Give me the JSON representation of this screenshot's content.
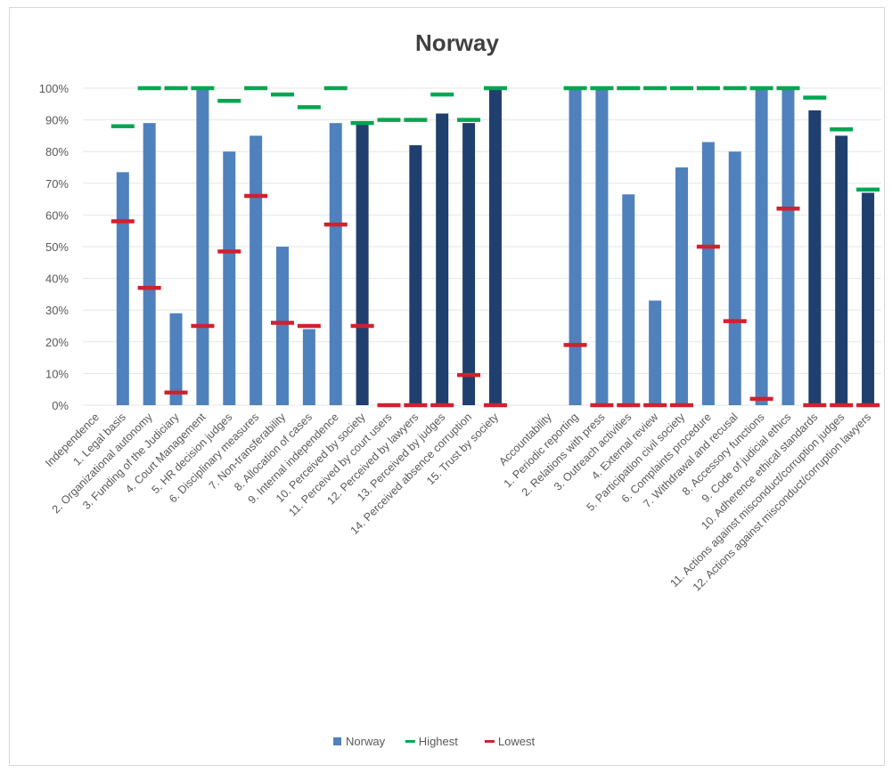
{
  "chart_data": {
    "type": "bar",
    "title": "Norway",
    "ylim": [
      0,
      100
    ],
    "yticks": [
      "0%",
      "10%",
      "20%",
      "30%",
      "40%",
      "50%",
      "60%",
      "70%",
      "80%",
      "90%",
      "100%"
    ],
    "grid": true,
    "legend_position": "bottom",
    "colors": {
      "light_bar": "#4f81bd",
      "dark_bar": "#1f3f6e",
      "highest": "#00a651",
      "lowest": "#d2202f",
      "grid": "#e6e6e6"
    },
    "categories": [
      "Independence",
      "1. Legal basis",
      "2. Organizational autonomy",
      "3. Funding of the Judiciary",
      "4. Court Management",
      "5. HR decision judges",
      "6. Disciplinary measures",
      "7. Non-transferability",
      "8. Allocation of cases",
      "9. Internal independence",
      "10. Perceived by society",
      "11. Perceived by court users",
      "12. Perceived by lawyers",
      "13. Perceived by judges",
      "14. Perceived absence corruption",
      "15. Trust by society",
      "",
      "Accountability",
      "1. Periodic reporting",
      "2. Relations with press",
      "3. Outreach activities",
      "4. External review",
      "5. Participation civil society",
      "6. Complaints procedure",
      "7. Withdrawal and recusal",
      "8. Accessory functions",
      "9. Code of judicial ethics",
      "10. Adherence ethical standards",
      "11. Actions against misconduct/corruption judges",
      "12. Actions against misconduct/corruption lawyers"
    ],
    "bar_shade": [
      "light",
      "light",
      "light",
      "light",
      "light",
      "light",
      "light",
      "light",
      "light",
      "light",
      "dark",
      "dark",
      "dark",
      "dark",
      "dark",
      "dark",
      "",
      "light",
      "light",
      "light",
      "light",
      "light",
      "light",
      "light",
      "light",
      "light",
      "light",
      "dark",
      "dark",
      "dark"
    ],
    "series": [
      {
        "name": "Norway",
        "values": [
          null,
          73.5,
          89,
          29,
          100,
          80,
          85,
          50,
          24,
          89,
          89,
          null,
          82,
          92,
          89,
          100,
          null,
          null,
          100,
          100,
          66.5,
          33,
          75,
          83,
          80,
          100,
          100,
          93,
          85,
          67
        ]
      },
      {
        "name": "Highest",
        "values": [
          null,
          88,
          100,
          100,
          100,
          96,
          100,
          98,
          94,
          100,
          89,
          90,
          90,
          98,
          90,
          100,
          null,
          null,
          100,
          100,
          100,
          100,
          100,
          100,
          100,
          100,
          100,
          97,
          87,
          68
        ]
      },
      {
        "name": "Lowest",
        "values": [
          null,
          58,
          37,
          4,
          25,
          48.5,
          66,
          26,
          25,
          57,
          25,
          0,
          0,
          0,
          9.5,
          0,
          null,
          null,
          19,
          0,
          0,
          0,
          0,
          50,
          26.5,
          2,
          62,
          0,
          0,
          0
        ]
      }
    ]
  }
}
